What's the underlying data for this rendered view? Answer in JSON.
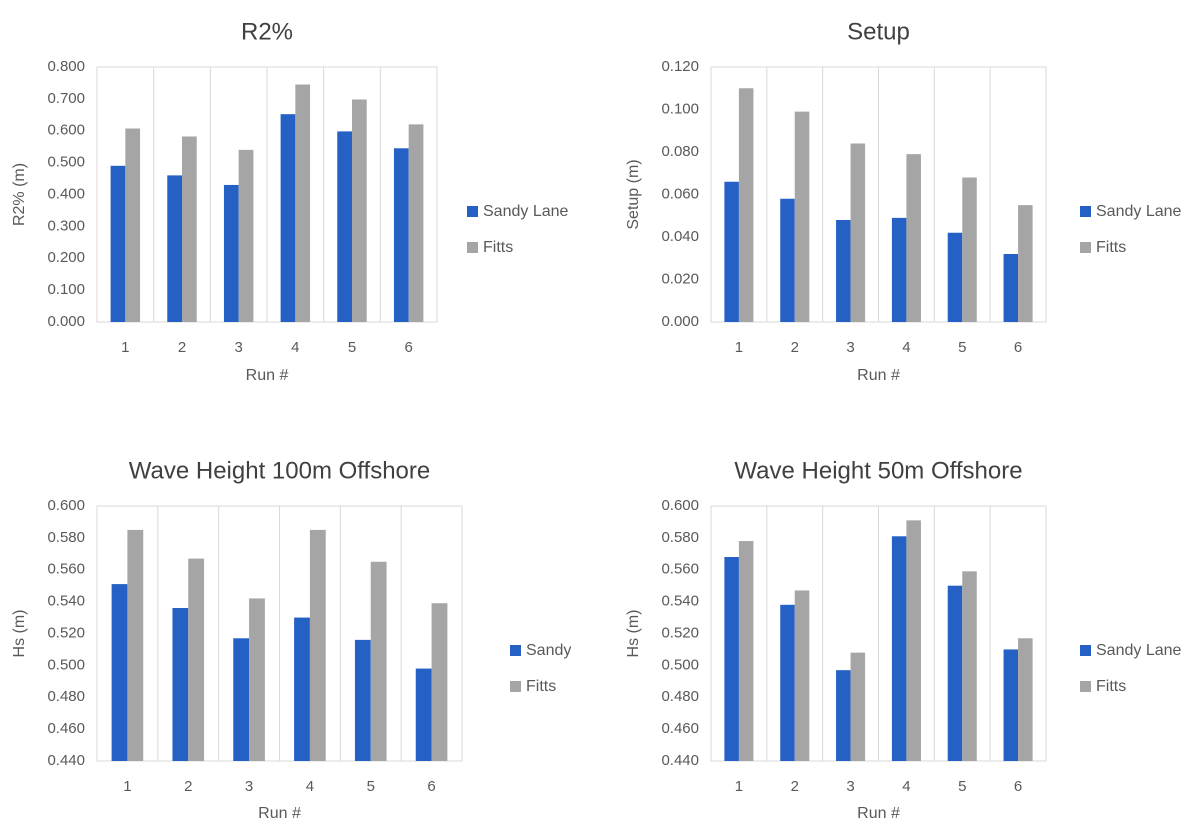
{
  "chart_data": [
    {
      "type": "bar",
      "title": "R2%",
      "xlabel": "Run #",
      "ylabel": "R2% (m)",
      "categories": [
        "1",
        "2",
        "3",
        "4",
        "5",
        "6"
      ],
      "ylim": [
        0,
        0.8
      ],
      "ytick_step": 0.1,
      "ytick_labels": [
        "0.000",
        "0.100",
        "0.200",
        "0.300",
        "0.400",
        "0.500",
        "0.600",
        "0.700",
        "0.800"
      ],
      "grid": "vertical",
      "legend_position": "right",
      "series": [
        {
          "name": "Sandy Lane",
          "color": "#2561c4",
          "values": [
            0.49,
            0.46,
            0.43,
            0.652,
            0.598,
            0.545
          ]
        },
        {
          "name": "Fitts",
          "color": "#a5a5a5",
          "values": [
            0.607,
            0.582,
            0.54,
            0.745,
            0.698,
            0.62
          ]
        }
      ]
    },
    {
      "type": "bar",
      "title": "Setup",
      "xlabel": "Run #",
      "ylabel": "Setup (m)",
      "categories": [
        "1",
        "2",
        "3",
        "4",
        "5",
        "6"
      ],
      "ylim": [
        0,
        0.12
      ],
      "ytick_step": 0.02,
      "ytick_labels": [
        "0.000",
        "0.020",
        "0.040",
        "0.060",
        "0.080",
        "0.100",
        "0.120"
      ],
      "grid": "vertical",
      "legend_position": "right",
      "series": [
        {
          "name": "Sandy Lane",
          "color": "#2561c4",
          "values": [
            0.066,
            0.058,
            0.048,
            0.049,
            0.042,
            0.032
          ]
        },
        {
          "name": "Fitts",
          "color": "#a5a5a5",
          "values": [
            0.11,
            0.099,
            0.084,
            0.079,
            0.068,
            0.055
          ]
        }
      ]
    },
    {
      "type": "bar",
      "title": "Wave Height 100m Offshore",
      "xlabel": "Run #",
      "ylabel": "Hs (m)",
      "categories": [
        "1",
        "2",
        "3",
        "4",
        "5",
        "6"
      ],
      "ylim": [
        0.44,
        0.6
      ],
      "ytick_step": 0.02,
      "ytick_labels": [
        "0.440",
        "0.460",
        "0.480",
        "0.500",
        "0.520",
        "0.540",
        "0.560",
        "0.580",
        "0.600"
      ],
      "grid": "vertical",
      "legend_position": "right",
      "series": [
        {
          "name": "Sandy",
          "color": "#2561c4",
          "values": [
            0.551,
            0.536,
            0.517,
            0.53,
            0.516,
            0.498
          ]
        },
        {
          "name": "Fitts",
          "color": "#a5a5a5",
          "values": [
            0.585,
            0.567,
            0.542,
            0.585,
            0.565,
            0.539
          ]
        }
      ]
    },
    {
      "type": "bar",
      "title": "Wave Height 50m Offshore",
      "xlabel": "Run #",
      "ylabel": "Hs (m)",
      "categories": [
        "1",
        "2",
        "3",
        "4",
        "5",
        "6"
      ],
      "ylim": [
        0.44,
        0.6
      ],
      "ytick_step": 0.02,
      "ytick_labels": [
        "0.440",
        "0.460",
        "0.480",
        "0.500",
        "0.520",
        "0.540",
        "0.560",
        "0.580",
        "0.600"
      ],
      "grid": "vertical",
      "legend_position": "right",
      "series": [
        {
          "name": "Sandy Lane",
          "color": "#2561c4",
          "values": [
            0.568,
            0.538,
            0.497,
            0.581,
            0.55,
            0.51
          ]
        },
        {
          "name": "Fitts",
          "color": "#a5a5a5",
          "values": [
            0.578,
            0.547,
            0.508,
            0.591,
            0.559,
            0.517
          ]
        }
      ]
    }
  ]
}
